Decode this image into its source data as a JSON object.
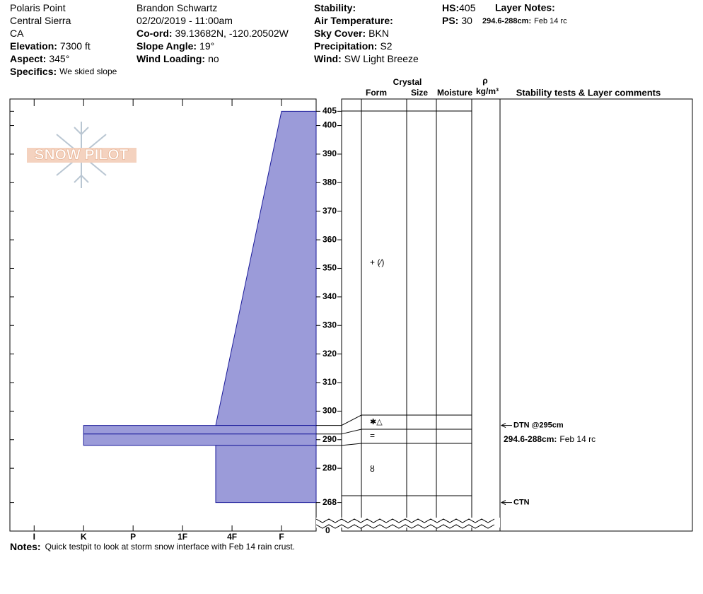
{
  "header": {
    "columns": [
      [
        {
          "value": "Polaris Point"
        },
        {
          "value": "Central Sierra"
        },
        {
          "value": "CA"
        },
        {
          "label": "Elevation:",
          "value": "7300 ft"
        },
        {
          "label": "Aspect:",
          "value": "345°"
        },
        {
          "label": "Specifics:",
          "value": "We skied slope"
        }
      ],
      [
        {
          "value": "Brandon Schwartz"
        },
        {
          "value": "02/20/2019 - 11:00am"
        },
        {
          "label": "Co-ord:",
          "value": "39.13682N, -120.20502W"
        },
        {
          "label": "Slope Angle:",
          "value": "19°"
        },
        {
          "label": "Wind Loading:",
          "value": "no"
        }
      ],
      [
        {
          "label": "Stability:"
        },
        {
          "label": "Air Temperature:"
        },
        {
          "label": "Sky Cover:",
          "value": "BKN"
        },
        {
          "label": "Precipitation:",
          "value": "S2"
        },
        {
          "label": "Wind:",
          "value": "SW Light Breeze"
        }
      ],
      [
        {
          "label": "HS:",
          "value": "405"
        },
        {
          "label": "PS:",
          "value": "30"
        }
      ]
    ],
    "layer_notes": {
      "label": "Layer Notes:",
      "items": [
        {
          "label": "294.6-288cm:",
          "value": "Feb 14 rc"
        }
      ]
    }
  },
  "logo": "SNOW PILOT",
  "chart_data": {
    "type": "snow-profile",
    "column_headers": {
      "crystal": "Crystal",
      "form": "Form",
      "size": "Size",
      "moisture": "Moisture",
      "density_symbol": "ρ",
      "density_unit": "kg/m³",
      "comments": "Stability tests & Layer comments"
    },
    "ylim": [
      258,
      409.3
    ],
    "yticks": [
      268,
      280,
      290,
      300,
      310,
      320,
      330,
      340,
      350,
      360,
      370,
      380,
      390,
      400,
      405
    ],
    "break_label": "0",
    "xlim": [
      6.49,
      0.3
    ],
    "xticks": [
      {
        "value": 6,
        "label": "I"
      },
      {
        "value": 5,
        "label": "K"
      },
      {
        "value": 4,
        "label": "P"
      },
      {
        "value": 3,
        "label": "1F"
      },
      {
        "value": 2,
        "label": "4F"
      },
      {
        "value": 1,
        "label": "F"
      }
    ],
    "color": "#9b9bd9",
    "edge_color": "#1a1a9a",
    "layers": [
      {
        "top": 405,
        "bottom": 295,
        "hardness_top": 1,
        "hardness_bottom": 2.33,
        "form": "+ (⁄)"
      },
      {
        "top": 295,
        "bottom": 292,
        "hardness_top": 5,
        "hardness_bottom": 5,
        "form": "✱△"
      },
      {
        "top": 292,
        "bottom": 288,
        "hardness_top": 5,
        "hardness_bottom": 5,
        "form": "="
      },
      {
        "top": 288,
        "bottom": 268,
        "hardness_top": 2.33,
        "hardness_bottom": 2.33,
        "form": "ȣ"
      }
    ],
    "stability_tests": [
      {
        "height": 295,
        "label": "DTN @295cm"
      },
      {
        "height": 268,
        "label": "CTN"
      }
    ]
  },
  "notes": {
    "label": "Notes:",
    "value": "Quick testpit to look at storm snow interface with Feb 14 rain crust."
  }
}
